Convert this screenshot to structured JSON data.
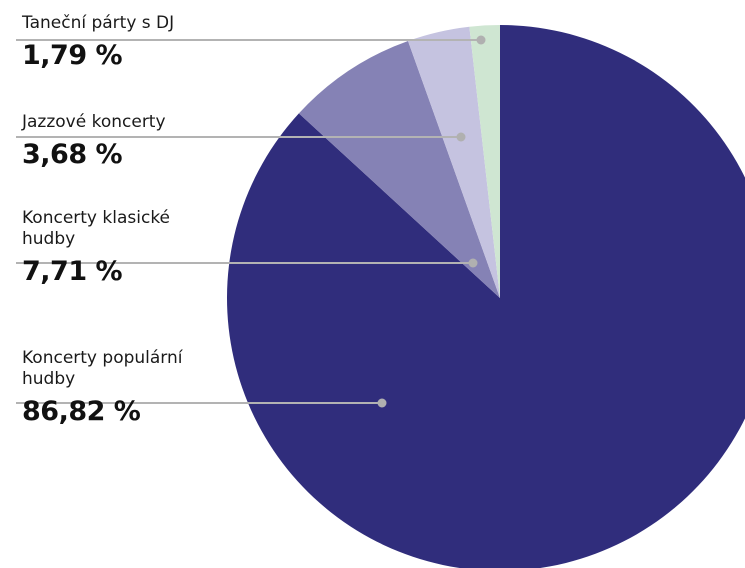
{
  "chart_data": {
    "type": "pie",
    "title": "",
    "slices": [
      {
        "label": "Koncerty populární hudby",
        "value": 86.82,
        "display": "86,82 %",
        "color": "#302d7c"
      },
      {
        "label": "Koncerty klasické hudby",
        "value": 7.71,
        "display": "7,71 %",
        "color": "#8582b5"
      },
      {
        "label": "Jazzové koncerty",
        "value": 3.68,
        "display": "3,68 %",
        "color": "#c5c3e0"
      },
      {
        "label": "Taneční párty s DJ",
        "value": 1.79,
        "display": "1,79 %",
        "color": "#cfe6d2"
      }
    ],
    "leader_color": "#b3b3b3",
    "marker_color": "#b0b0b0",
    "start": "top",
    "direction": "clockwise",
    "legend_position": "left"
  }
}
